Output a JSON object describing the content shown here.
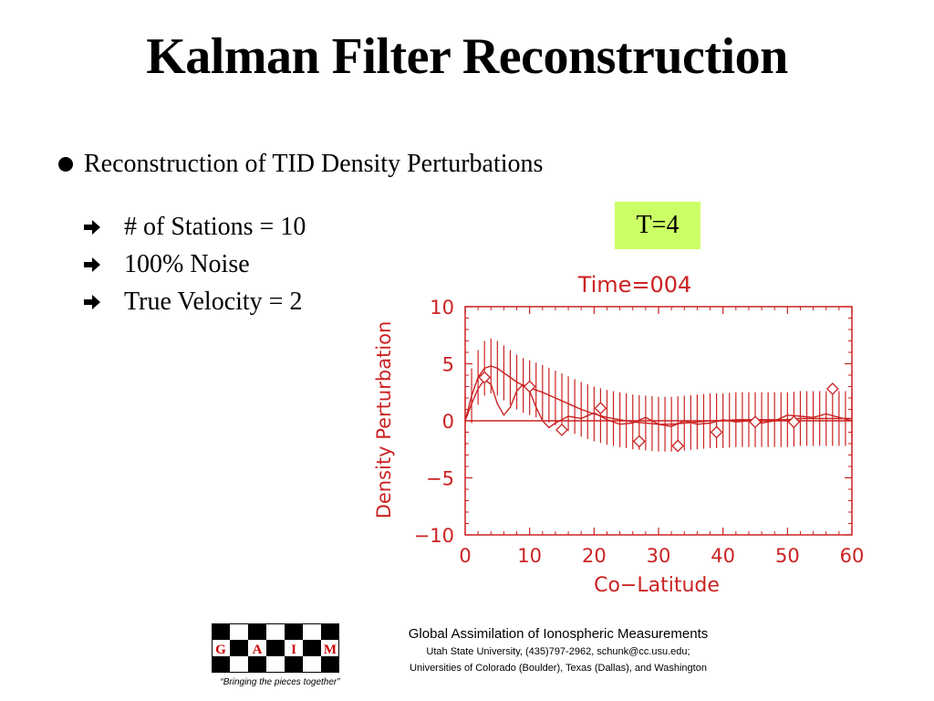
{
  "slide": {
    "title": "Kalman Filter Reconstruction",
    "main_bullet": "Reconstruction of TID Density Perturbations",
    "sub_bullets": [
      "# of Stations = 10",
      "100% Noise",
      "True Velocity = 2"
    ],
    "badge": "T=4",
    "badge_color": "#ccff66"
  },
  "chart_data": {
    "type": "line",
    "title": "Time=004",
    "xlabel": "Co−Latitude",
    "ylabel": "Density Perturbation",
    "xlim": [
      0,
      60
    ],
    "ylim": [
      -10,
      10
    ],
    "xticks": [
      "0",
      "10",
      "20",
      "30",
      "40",
      "50",
      "60"
    ],
    "yticks": [
      "10",
      "5",
      "0",
      "−5",
      "−10"
    ],
    "color": "#cc2222",
    "grid": false,
    "series": [
      {
        "kind": "smooth",
        "x": [
          0,
          1,
          2,
          3,
          4,
          5,
          6,
          7,
          8,
          9,
          10,
          12,
          14,
          16,
          18,
          20,
          22,
          24,
          26,
          28,
          30,
          32,
          34,
          36,
          38,
          40,
          42,
          44,
          46,
          48,
          50,
          52,
          54,
          56,
          58,
          60
        ],
        "y": [
          0,
          2.2,
          3.8,
          4.6,
          4.8,
          4.6,
          4.2,
          3.8,
          3.4,
          3.1,
          2.9,
          2.5,
          2.0,
          1.5,
          1.0,
          0.6,
          0.3,
          0.1,
          -0.1,
          -0.2,
          -0.3,
          -0.3,
          -0.2,
          -0.1,
          0,
          0,
          0.1,
          0.1,
          0.1,
          0.1,
          0.1,
          0.2,
          0.2,
          0.2,
          0.2,
          0.2
        ]
      },
      {
        "kind": "wiggle",
        "x": [
          0,
          1,
          2,
          3,
          4,
          5,
          6,
          7,
          8,
          9,
          10,
          11,
          12,
          13,
          14,
          16,
          18,
          20,
          22,
          24,
          26,
          28,
          30,
          32,
          34,
          36,
          38,
          40,
          42,
          44,
          46,
          48,
          50,
          52,
          54,
          56,
          58,
          60
        ],
        "y": [
          0,
          1.5,
          2.8,
          3.6,
          3.2,
          1.5,
          0.5,
          1.2,
          2.6,
          3.2,
          2.6,
          1.2,
          0,
          -0.6,
          -0.2,
          0.4,
          0.2,
          0.7,
          0.1,
          -0.3,
          -0.2,
          0.3,
          -0.3,
          -0.5,
          0,
          -0.3,
          -0.2,
          0.1,
          -0.1,
          0,
          -0.2,
          0,
          0.5,
          0.4,
          0.3,
          0.6,
          0.3,
          0
        ]
      }
    ],
    "markers": {
      "shape": "diamond",
      "x": [
        3,
        10,
        15,
        21,
        27,
        33,
        39,
        45,
        51,
        57
      ],
      "y": [
        3.8,
        3.0,
        -0.8,
        1.1,
        -1.8,
        -2.2,
        -1.0,
        -0.1,
        -0.1,
        2.8
      ]
    },
    "error_bars": {
      "step": 1,
      "x_start": 0,
      "x_end": 60,
      "half_range": 2.4
    },
    "zero_line": 0
  },
  "footer": {
    "logo_letters": [
      "G",
      "A",
      "I",
      "M"
    ],
    "slogan": "“Bringing the pieces together”",
    "title": "Global Assimilation of Ionospheric Measurements",
    "line1": "Utah State University, (435)797-2962, schunk@cc.usu.edu;",
    "line2": "Universities of Colorado (Boulder), Texas (Dallas), and Washington"
  }
}
